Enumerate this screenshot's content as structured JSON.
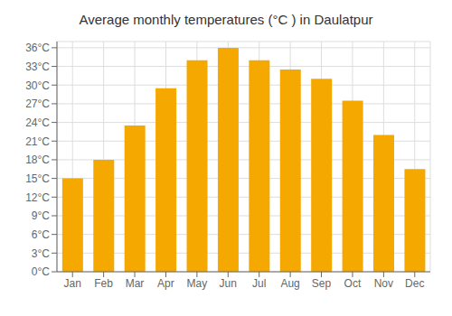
{
  "chart_data": {
    "type": "bar",
    "title": "Average monthly temperatures (°C ) in Daulatpur",
    "categories": [
      "Jan",
      "Feb",
      "Mar",
      "Apr",
      "May",
      "Jun",
      "Jul",
      "Aug",
      "Sep",
      "Oct",
      "Nov",
      "Dec"
    ],
    "values": [
      15,
      18,
      23.5,
      29.5,
      34,
      36,
      34,
      32.5,
      31,
      27.5,
      22,
      16.5
    ],
    "color": "#F5A800",
    "ylim": [
      0,
      37
    ],
    "yticks": [
      {
        "value": 0,
        "label": "0°C"
      },
      {
        "value": 3,
        "label": "3°C"
      },
      {
        "value": 6,
        "label": "6°C"
      },
      {
        "value": 9,
        "label": "9°C"
      },
      {
        "value": 12,
        "label": "12°C"
      },
      {
        "value": 15,
        "label": "15°C"
      },
      {
        "value": 18,
        "label": "18°C"
      },
      {
        "value": 21,
        "label": "21°C"
      },
      {
        "value": 24,
        "label": "24°C"
      },
      {
        "value": 27,
        "label": "27°C"
      },
      {
        "value": 30,
        "label": "30°C"
      },
      {
        "value": 33,
        "label": "33°C"
      },
      {
        "value": 36,
        "label": "36°C"
      }
    ],
    "grid": true
  }
}
